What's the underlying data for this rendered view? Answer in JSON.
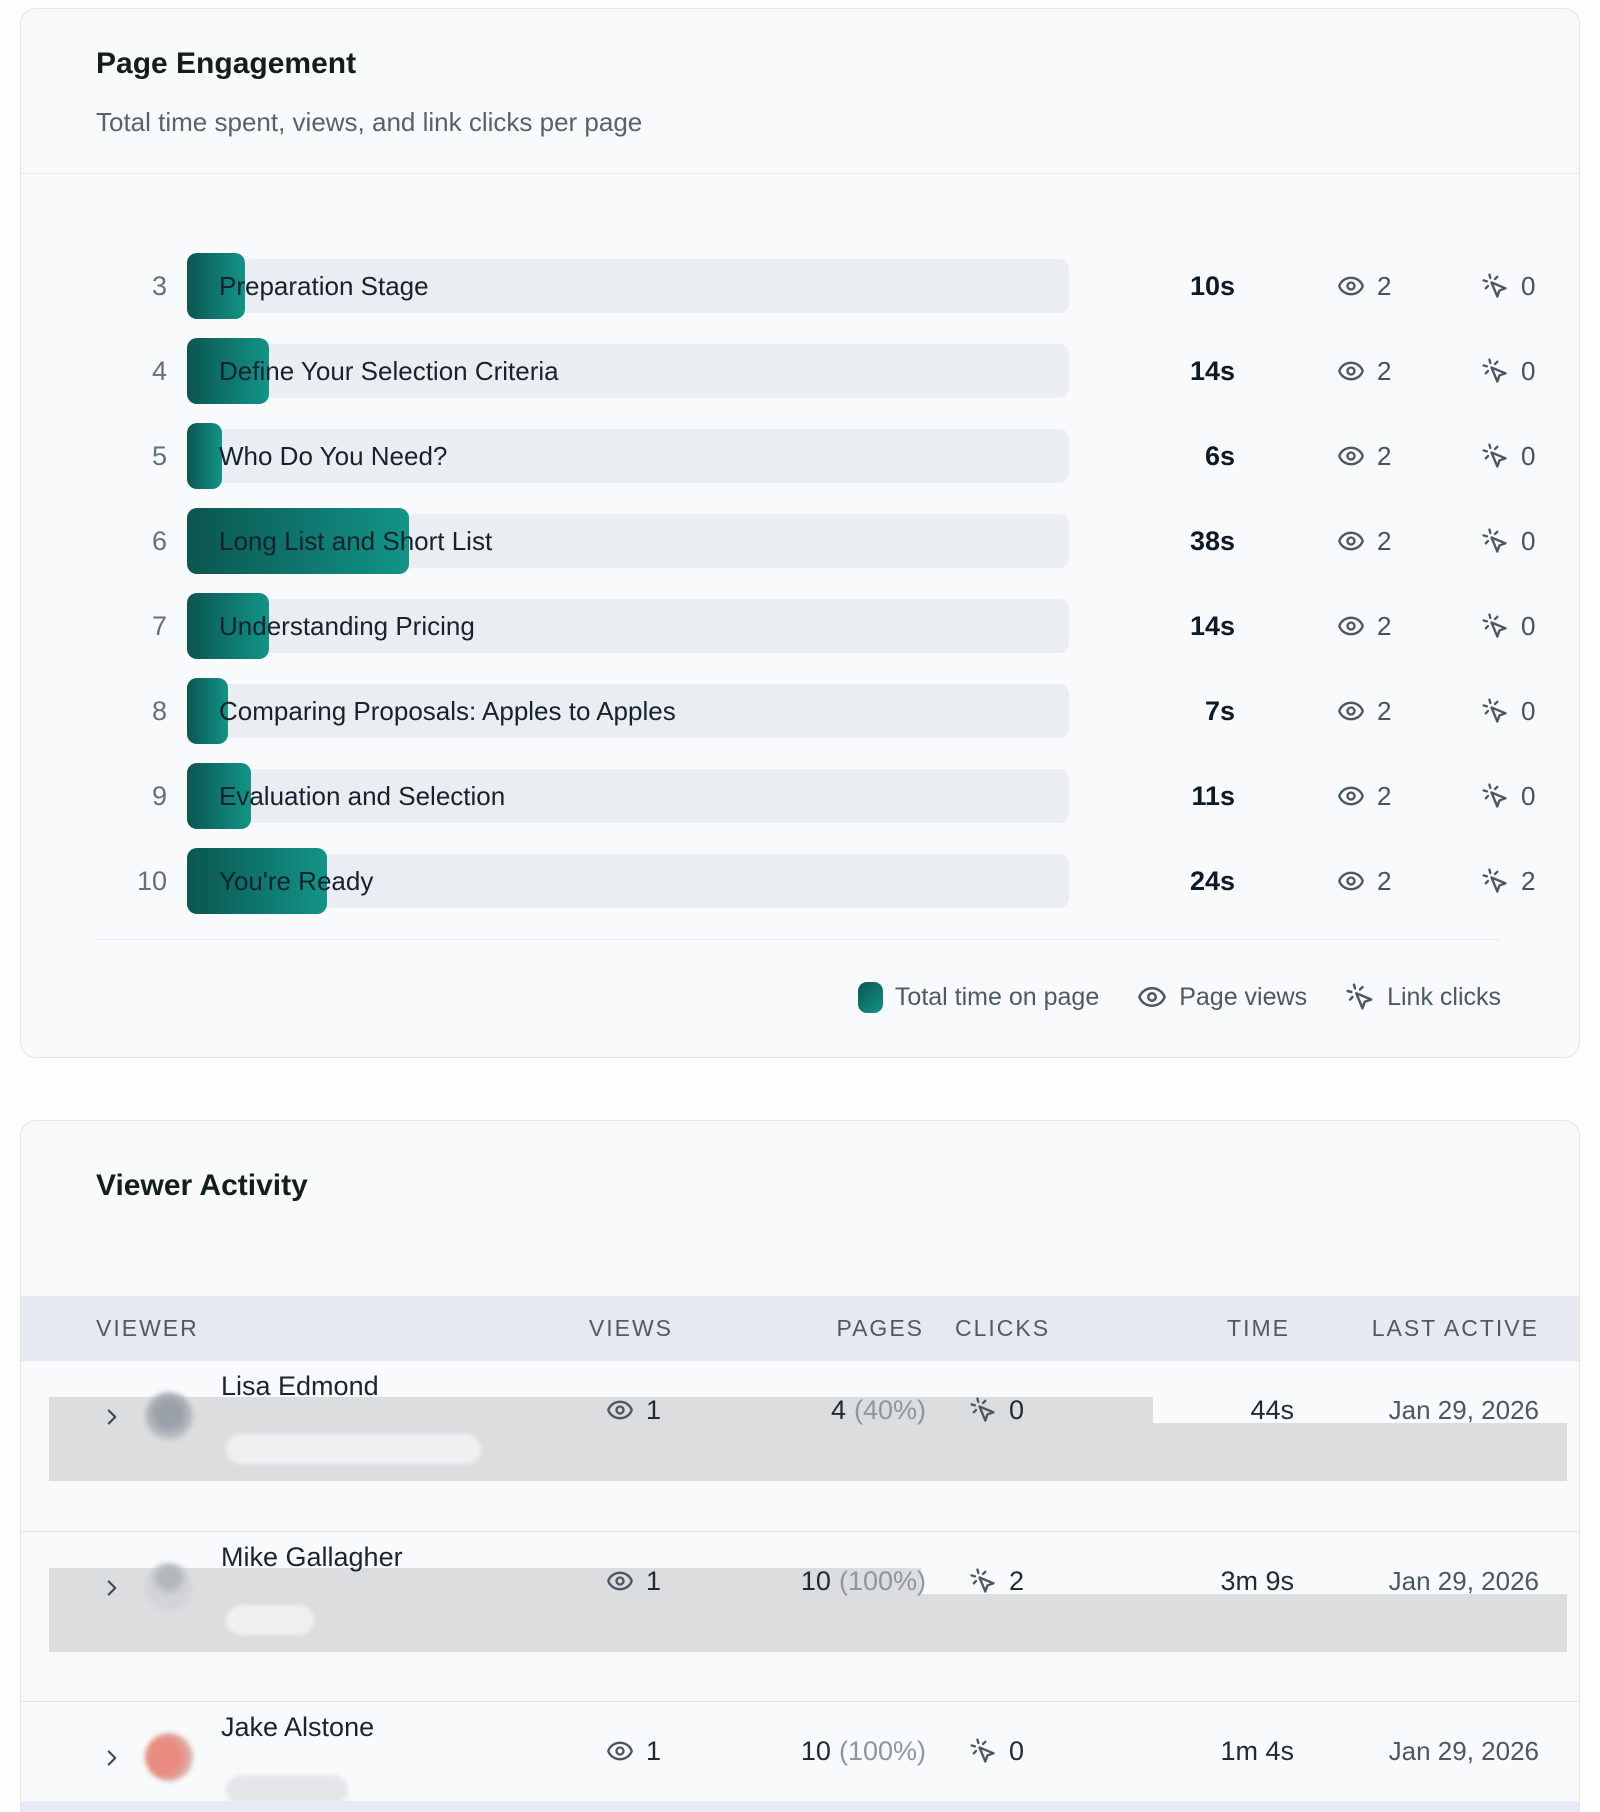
{
  "engagement_card": {
    "title": "Page Engagement",
    "subtitle": "Total time spent, views, and link clicks per page",
    "rows": [
      {
        "num": "3",
        "label": "Preparation Stage",
        "time": "10s",
        "views": "2",
        "clicks": "0"
      },
      {
        "num": "4",
        "label": "Define Your Selection Criteria",
        "time": "14s",
        "views": "2",
        "clicks": "0"
      },
      {
        "num": "5",
        "label": "Who Do You Need?",
        "time": "6s",
        "views": "2",
        "clicks": "0"
      },
      {
        "num": "6",
        "label": "Long List and Short List",
        "time": "38s",
        "views": "2",
        "clicks": "0"
      },
      {
        "num": "7",
        "label": "Understanding Pricing",
        "time": "14s",
        "views": "2",
        "clicks": "0"
      },
      {
        "num": "8",
        "label": "Comparing Proposals: Apples to Apples",
        "time": "7s",
        "views": "2",
        "clicks": "0"
      },
      {
        "num": "9",
        "label": "Evaluation and Selection",
        "time": "11s",
        "views": "2",
        "clicks": "0"
      },
      {
        "num": "10",
        "label": "You're Ready",
        "time": "24s",
        "views": "2",
        "clicks": "2"
      }
    ],
    "legend": {
      "time_label": "Total time on page",
      "views_label": "Page views",
      "clicks_label": "Link clicks"
    }
  },
  "chart_data": {
    "type": "bar",
    "orientation": "horizontal",
    "title": "Page Engagement",
    "subtitle": "Total time spent, views, and link clicks per page",
    "page_numbers": [
      3,
      4,
      5,
      6,
      7,
      8,
      9,
      10
    ],
    "categories": [
      "Preparation Stage",
      "Define Your Selection Criteria",
      "Who Do You Need?",
      "Long List and Short List",
      "Understanding Pricing",
      "Comparing Proposals: Apples to Apples",
      "Evaluation and Selection",
      "You're Ready"
    ],
    "values": [
      10,
      14,
      6,
      38,
      14,
      7,
      11,
      24
    ],
    "value_unit": "seconds",
    "value_labels": [
      "10s",
      "14s",
      "6s",
      "38s",
      "14s",
      "7s",
      "11s",
      "24s"
    ],
    "series": [
      {
        "name": "Total time on page (s)",
        "values": [
          10,
          14,
          6,
          38,
          14,
          7,
          11,
          24
        ]
      },
      {
        "name": "Page views",
        "values": [
          2,
          2,
          2,
          2,
          2,
          2,
          2,
          2
        ]
      },
      {
        "name": "Link clicks",
        "values": [
          0,
          0,
          0,
          0,
          0,
          0,
          0,
          2
        ]
      }
    ],
    "legend_position": "bottom-right",
    "bar_color_gradient": [
      "#0b5650",
      "#129488"
    ],
    "track_color": "#eaedf2"
  },
  "viewer_card": {
    "title": "Viewer Activity",
    "columns": {
      "viewer": "VIEWER",
      "views": "VIEWS",
      "pages": "PAGES",
      "clicks": "CLICKS",
      "time": "TIME",
      "last_active": "LAST ACTIVE"
    },
    "rows": [
      {
        "name": "Lisa Edmond",
        "views": "1",
        "pages": "4",
        "pages_pct": "(40%)",
        "clicks": "0",
        "time": "44s",
        "last_active": "Jan 29, 2026"
      },
      {
        "name": "Mike Gallagher",
        "views": "1",
        "pages": "10",
        "pages_pct": "(100%)",
        "clicks": "2",
        "time": "3m 9s",
        "last_active": "Jan 29, 2026"
      },
      {
        "name": "Jake Alstone",
        "views": "1",
        "pages": "10",
        "pages_pct": "(100%)",
        "clicks": "0",
        "time": "1m 4s",
        "last_active": "Jan 29, 2026"
      }
    ]
  },
  "colors": {
    "bar_gradient_start": "#0b5650",
    "bar_gradient_end": "#129488",
    "track": "#eaedf2",
    "card_border": "#ece4d4",
    "table_header_bg": "#e7e9f0",
    "redaction_band": "#dcddde",
    "text_dark": "#101d27",
    "text_gray": "#57636c"
  }
}
